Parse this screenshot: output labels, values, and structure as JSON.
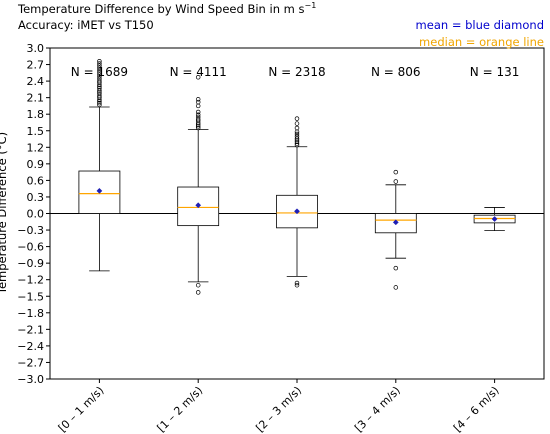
{
  "title_text": "Temperature Difference by Wind Speed Bin in m s",
  "title_superscript": "−1",
  "subtitle": "Accuracy:  iMET vs T150",
  "annotation_mean": "mean = blue diamond",
  "annotation_median": "median = orange line",
  "colors": {
    "mean": "#1f1fb4",
    "median": "#ffa500",
    "box": "#000000",
    "zero_line": "#000000",
    "annotation_mean": "#0000cc",
    "annotation_median": "#f0a500"
  },
  "chart_data": {
    "type": "box",
    "title": "Temperature Difference by Wind Speed Bin in m s−1",
    "xlabel": "",
    "ylabel": "Temperature Difference (°C)",
    "ylim": [
      -3.0,
      3.0
    ],
    "ytick_step": 0.3,
    "yticks": [
      "−3.0",
      "−2.7",
      "−2.4",
      "−2.1",
      "−1.8",
      "−1.5",
      "−1.2",
      "−0.9",
      "−0.6",
      "−0.3",
      "0.0",
      "0.3",
      "0.6",
      "0.9",
      "1.2",
      "1.5",
      "1.8",
      "2.1",
      "2.4",
      "2.7",
      "3.0"
    ],
    "grid": false,
    "zero_line": true,
    "categories": [
      "[0 – 1 m/s)",
      "[1 – 2 m/s)",
      "[2 – 3 m/s)",
      "[3 – 4 m/s)",
      "[4 – 6 m/s)"
    ],
    "counts": [
      "N = 1689",
      "N = 4111",
      "N = 2318",
      "N = 806",
      "N = 131"
    ],
    "boxes": [
      {
        "whisker_low": -1.04,
        "q1": 0.0,
        "median": 0.36,
        "q3": 0.77,
        "whisker_high": 1.93,
        "mean": 0.41,
        "outliers_high": [
          1.97,
          2.0,
          2.03,
          2.06,
          2.1,
          2.13,
          2.17,
          2.2,
          2.23,
          2.27,
          2.3,
          2.33,
          2.37,
          2.4,
          2.44,
          2.48,
          2.52,
          2.56,
          2.6,
          2.64,
          2.68,
          2.72,
          2.76
        ],
        "outliers_low": []
      },
      {
        "whisker_low": -1.24,
        "q1": -0.22,
        "median": 0.11,
        "q3": 0.48,
        "whisker_high": 1.52,
        "mean": 0.15,
        "outliers_high": [
          1.55,
          1.58,
          1.61,
          1.64,
          1.68,
          1.71,
          1.75,
          1.79,
          1.84,
          1.95,
          2.02,
          2.07,
          2.47
        ],
        "outliers_low": [
          -1.3,
          -1.43
        ]
      },
      {
        "whisker_low": -1.14,
        "q1": -0.26,
        "median": 0.01,
        "q3": 0.33,
        "whisker_high": 1.21,
        "mean": 0.04,
        "outliers_high": [
          1.24,
          1.27,
          1.3,
          1.33,
          1.36,
          1.4,
          1.44,
          1.48,
          1.55,
          1.63,
          1.72
        ],
        "outliers_low": [
          -1.26,
          -1.3
        ]
      },
      {
        "whisker_low": -0.81,
        "q1": -0.35,
        "median": -0.12,
        "q3": 0.0,
        "whisker_high": 0.52,
        "mean": -0.16,
        "outliers_high": [
          0.58,
          0.75
        ],
        "outliers_low": [
          -0.99,
          -1.34
        ]
      },
      {
        "whisker_low": -0.31,
        "q1": -0.17,
        "median": -0.09,
        "q3": -0.03,
        "whisker_high": 0.11,
        "mean": -0.1,
        "outliers_high": [],
        "outliers_low": []
      }
    ]
  }
}
